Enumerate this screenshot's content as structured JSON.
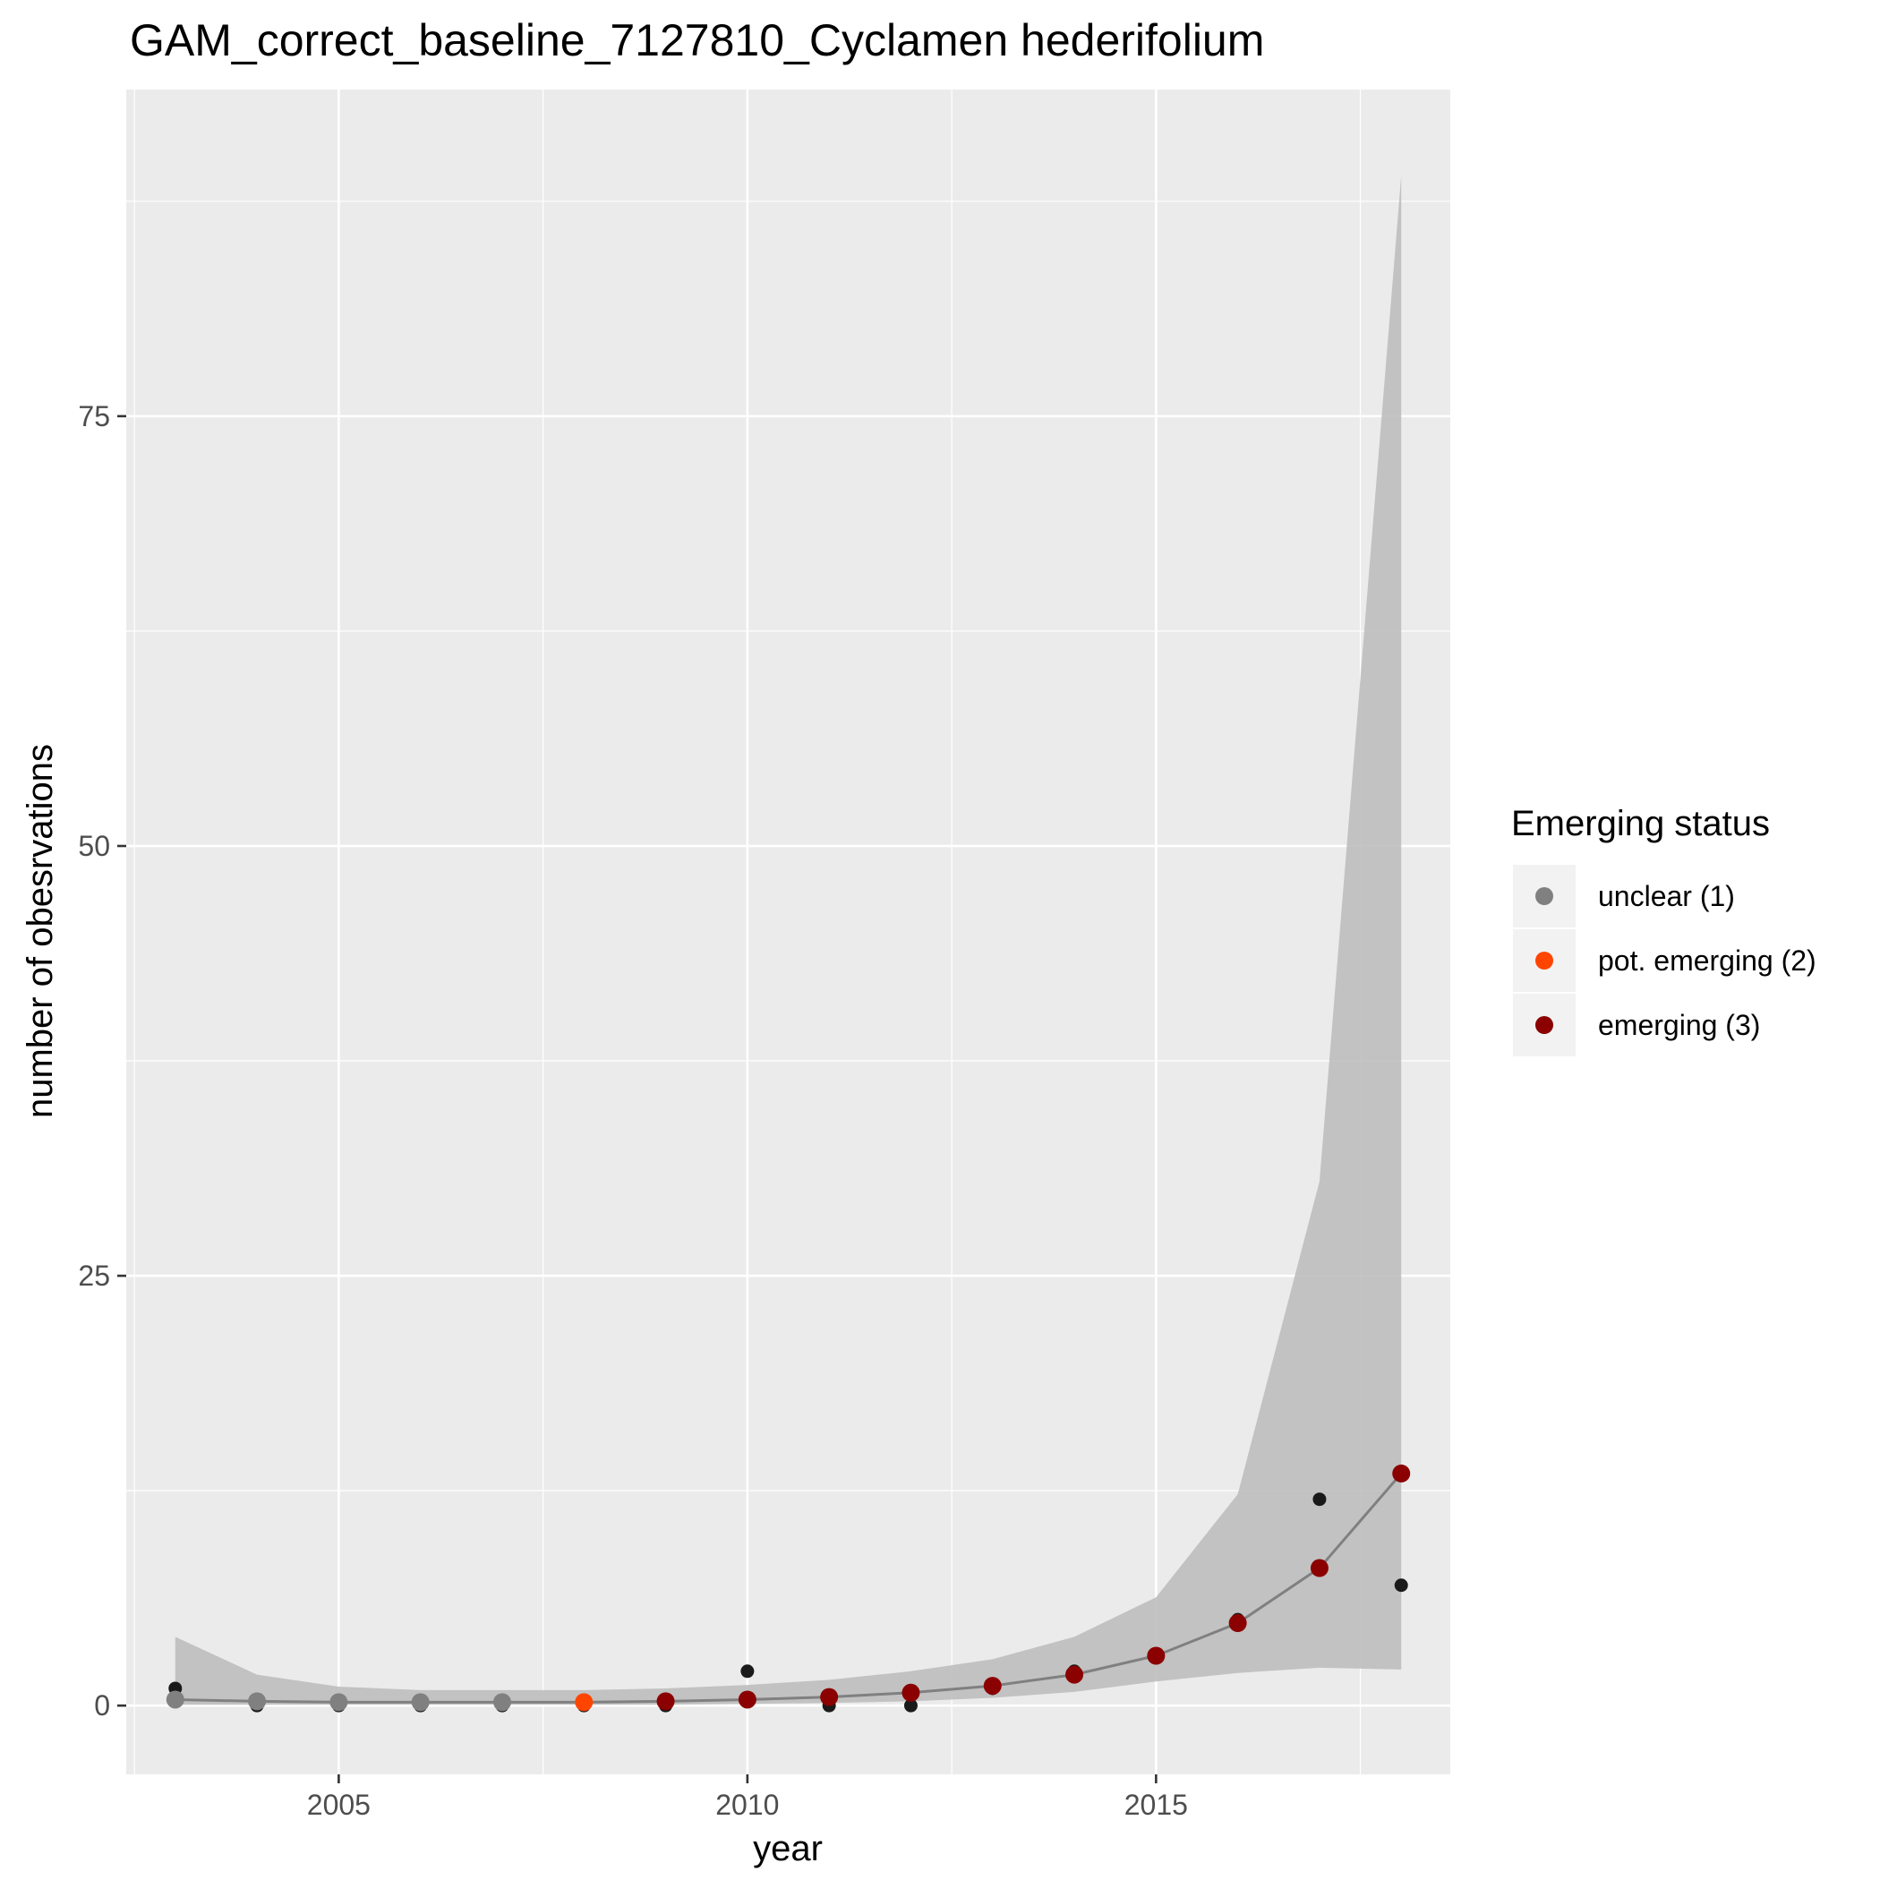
{
  "chart_data": {
    "type": "scatter",
    "title": "GAM_correct_baseline_7127810_Cyclamen hederifolium",
    "xlabel": "year",
    "ylabel": "number of obesrvations",
    "xlim": [
      2002.4,
      2018.6
    ],
    "ylim": [
      -4,
      94
    ],
    "x_ticks": [
      2005,
      2010,
      2015
    ],
    "y_ticks": [
      0,
      25,
      50,
      75
    ],
    "grid": true,
    "legend": {
      "title": "Emerging status",
      "placement": "right",
      "entries": [
        {
          "label": "unclear (1)",
          "color": "#808080"
        },
        {
          "label": "pot. emerging (2)",
          "color": "#ff4500"
        },
        {
          "label": "emerging (3)",
          "color": "#8b0000"
        }
      ]
    },
    "observed": {
      "color": "#1a1a1a",
      "points": [
        {
          "x": 2003,
          "y": 1
        },
        {
          "x": 2004,
          "y": 0
        },
        {
          "x": 2005,
          "y": 0
        },
        {
          "x": 2006,
          "y": 0
        },
        {
          "x": 2007,
          "y": 0
        },
        {
          "x": 2008,
          "y": 0
        },
        {
          "x": 2009,
          "y": 0
        },
        {
          "x": 2010,
          "y": 2
        },
        {
          "x": 2011,
          "y": 0
        },
        {
          "x": 2012,
          "y": 0
        },
        {
          "x": 2013,
          "y": 1
        },
        {
          "x": 2014,
          "y": 2
        },
        {
          "x": 2015,
          "y": 3
        },
        {
          "x": 2016,
          "y": 5
        },
        {
          "x": 2017,
          "y": 12
        },
        {
          "x": 2018,
          "y": 7
        }
      ]
    },
    "fit": {
      "line_color": "#808080",
      "ribbon_color": "#bebebe",
      "points": [
        {
          "x": 2003,
          "y": 0.35,
          "lower": 0.05,
          "upper": 4.0,
          "status": 1
        },
        {
          "x": 2004,
          "y": 0.25,
          "lower": 0.05,
          "upper": 1.8,
          "status": 1
        },
        {
          "x": 2005,
          "y": 0.2,
          "lower": 0.05,
          "upper": 1.1,
          "status": 1
        },
        {
          "x": 2006,
          "y": 0.2,
          "lower": 0.05,
          "upper": 0.9,
          "status": 1
        },
        {
          "x": 2007,
          "y": 0.2,
          "lower": 0.05,
          "upper": 0.9,
          "status": 1
        },
        {
          "x": 2008,
          "y": 0.2,
          "lower": 0.05,
          "upper": 0.9,
          "status": 2
        },
        {
          "x": 2009,
          "y": 0.25,
          "lower": 0.05,
          "upper": 1.0,
          "status": 3
        },
        {
          "x": 2010,
          "y": 0.35,
          "lower": 0.1,
          "upper": 1.2,
          "status": 3
        },
        {
          "x": 2011,
          "y": 0.5,
          "lower": 0.15,
          "upper": 1.5,
          "status": 3
        },
        {
          "x": 2012,
          "y": 0.75,
          "lower": 0.25,
          "upper": 2.0,
          "status": 3
        },
        {
          "x": 2013,
          "y": 1.15,
          "lower": 0.45,
          "upper": 2.7,
          "status": 3
        },
        {
          "x": 2014,
          "y": 1.8,
          "lower": 0.8,
          "upper": 4.0,
          "status": 3
        },
        {
          "x": 2015,
          "y": 2.9,
          "lower": 1.4,
          "upper": 6.3,
          "status": 3
        },
        {
          "x": 2016,
          "y": 4.8,
          "lower": 1.9,
          "upper": 12.3,
          "status": 3
        },
        {
          "x": 2017,
          "y": 8.0,
          "lower": 2.2,
          "upper": 30.5,
          "status": 3
        },
        {
          "x": 2018,
          "y": 13.5,
          "lower": 2.1,
          "upper": 89.0,
          "status": 3
        }
      ]
    }
  }
}
